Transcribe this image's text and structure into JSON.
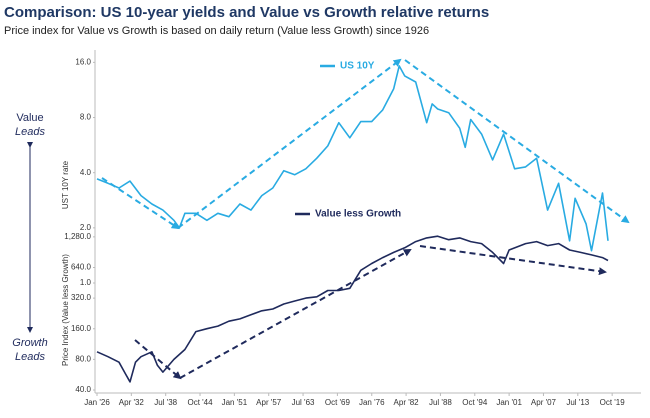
{
  "chart_data": [
    {
      "type": "line",
      "title": "Comparison: US 10-year yields and Value vs Growth relative returns",
      "subtitle": "Price index for Value vs Growth is based on daily return (Value less Growth) since 1926",
      "annotations": [
        "Value",
        "Leads",
        "Growth",
        "Leads"
      ],
      "y_label": "UST 10Y rate",
      "log_y": true,
      "grid": false,
      "ylim": [
        1,
        18
      ],
      "yticks": [
        {
          "value": 1,
          "label": "1.0"
        },
        {
          "value": 2,
          "label": "2.0"
        },
        {
          "value": 4,
          "label": "4.0"
        },
        {
          "value": 8,
          "label": "8.0"
        },
        {
          "value": 16,
          "label": "16.0"
        }
      ],
      "xlim": [
        1926,
        2025
      ],
      "x": [
        1926,
        1928,
        1930,
        1932,
        1934,
        1936,
        1938,
        1940,
        1941,
        1942,
        1944,
        1946,
        1948,
        1950,
        1952,
        1954,
        1956,
        1958,
        1960,
        1962,
        1964,
        1966,
        1968,
        1970,
        1972,
        1974,
        1976,
        1978,
        1980,
        1981,
        1982,
        1984,
        1986,
        1987,
        1988,
        1990,
        1992,
        1993,
        1994,
        1996,
        1998,
        2000,
        2002,
        2004,
        2006,
        2008,
        2010,
        2012,
        2013,
        2015,
        2016,
        2018,
        2019
      ],
      "series": [
        {
          "name": "US 10Y",
          "color": "#29abe2",
          "values": [
            3.7,
            3.5,
            3.3,
            3.6,
            3.0,
            2.7,
            2.5,
            2.2,
            2.0,
            2.4,
            2.4,
            2.2,
            2.4,
            2.3,
            2.7,
            2.5,
            3.0,
            3.3,
            4.1,
            3.9,
            4.2,
            4.8,
            5.6,
            7.5,
            6.2,
            7.6,
            7.6,
            8.8,
            11.5,
            15.3,
            13.5,
            12.5,
            7.5,
            9.5,
            8.9,
            8.5,
            7.0,
            5.5,
            7.8,
            6.5,
            4.7,
            6.5,
            4.2,
            4.3,
            4.8,
            2.5,
            3.5,
            1.7,
            2.9,
            2.1,
            1.5,
            3.1,
            1.7
          ]
        }
      ]
    },
    {
      "type": "line",
      "y_label": "Price Index (Value less Growth)",
      "log_y": true,
      "grid": false,
      "ylim": [
        40,
        1600
      ],
      "yticks": [
        {
          "value": 40,
          "label": "40.0"
        },
        {
          "value": 80,
          "label": "80.0"
        },
        {
          "value": 160,
          "label": "160.0"
        },
        {
          "value": 320,
          "label": "320.0"
        },
        {
          "value": 640,
          "label": "640.0"
        },
        {
          "value": 1280,
          "label": "1,280.0"
        }
      ],
      "xlim": [
        1926,
        2025
      ],
      "xticks": [
        {
          "value": 1926,
          "label": "Jan '26"
        },
        {
          "value": 1932.25,
          "label": "Apr '32"
        },
        {
          "value": 1938.5,
          "label": "Jul '38"
        },
        {
          "value": 1944.75,
          "label": "Oct '44"
        },
        {
          "value": 1951,
          "label": "Jan '51"
        },
        {
          "value": 1957.25,
          "label": "Apr '57"
        },
        {
          "value": 1963.5,
          "label": "Jul '63"
        },
        {
          "value": 1969.75,
          "label": "Oct '69"
        },
        {
          "value": 1976,
          "label": "Jan '76"
        },
        {
          "value": 1982.25,
          "label": "Apr '82"
        },
        {
          "value": 1988.5,
          "label": "Jul '88"
        },
        {
          "value": 1994.75,
          "label": "Oct '94"
        },
        {
          "value": 2001,
          "label": "Jan '01"
        },
        {
          "value": 2007.25,
          "label": "Apr '07"
        },
        {
          "value": 2013.5,
          "label": "Jul '13"
        },
        {
          "value": 2019.75,
          "label": "Oct '19"
        }
      ],
      "x": [
        1926,
        1928,
        1930,
        1931,
        1932,
        1933,
        1934,
        1936,
        1937,
        1938,
        1940,
        1942,
        1944,
        1946,
        1948,
        1950,
        1952,
        1954,
        1956,
        1958,
        1960,
        1962,
        1964,
        1966,
        1968,
        1970,
        1972,
        1974,
        1976,
        1978,
        1980,
        1982,
        1984,
        1986,
        1988,
        1990,
        1992,
        1994,
        1996,
        1998,
        2000,
        2001,
        2004,
        2006,
        2008,
        2010,
        2012,
        2014,
        2016,
        2018,
        2019
      ],
      "series": [
        {
          "name": "Value less Growth",
          "color": "#1f2a5c",
          "values": [
            95,
            85,
            75,
            60,
            48,
            75,
            85,
            95,
            70,
            60,
            80,
            100,
            150,
            160,
            170,
            190,
            200,
            220,
            240,
            250,
            280,
            300,
            320,
            330,
            380,
            380,
            400,
            600,
            700,
            800,
            900,
            1000,
            1150,
            1250,
            1300,
            1200,
            1250,
            1150,
            1100,
            900,
            700,
            950,
            1100,
            1150,
            1050,
            1100,
            950,
            900,
            850,
            800,
            750
          ]
        }
      ]
    }
  ]
}
